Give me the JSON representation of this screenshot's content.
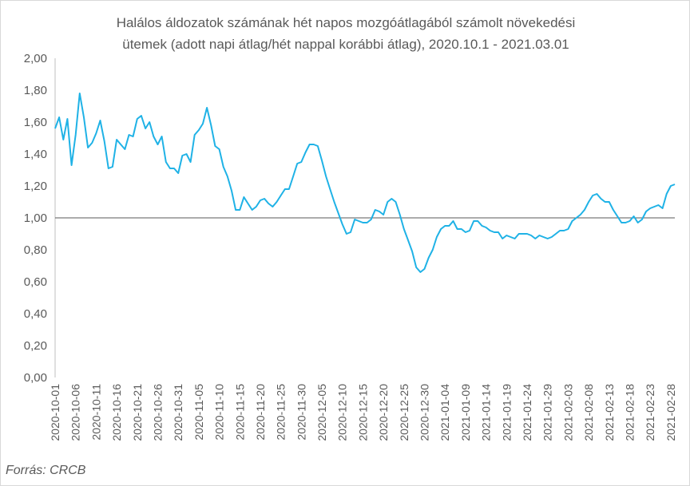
{
  "chart_data": {
    "type": "line",
    "title_lines": [
      "Halálos áldozatok számának hét napos mozgóátlagából számolt növekedési",
      "ütemek (adott napi átlag/hét nappal korábbi átlag), 2020.10.1 - 2021.03.01"
    ],
    "xlabel": "",
    "ylabel": "",
    "ylim": [
      0,
      2
    ],
    "y_ticks": [
      "0,00",
      "0,20",
      "0,40",
      "0,60",
      "0,80",
      "1,00",
      "1,20",
      "1,40",
      "1,60",
      "1,80",
      "2,00"
    ],
    "reference_line": 1.0,
    "grid": false,
    "x_tick_labels": [
      "2020-10-01",
      "2020-10-06",
      "2020-10-11",
      "2020-10-16",
      "2020-10-21",
      "2020-10-26",
      "2020-10-31",
      "2020-11-05",
      "2020-11-10",
      "2020-11-15",
      "2020-11-20",
      "2020-11-25",
      "2020-11-30",
      "2020-12-05",
      "2020-12-10",
      "2020-12-15",
      "2020-12-20",
      "2020-12-25",
      "2020-12-30",
      "2021-01-04",
      "2021-01-09",
      "2021-01-14",
      "2021-01-19",
      "2021-01-24",
      "2021-01-29",
      "2021-02-03",
      "2021-02-08",
      "2021-02-13",
      "2021-02-18",
      "2021-02-23",
      "2021-02-28"
    ],
    "x_start": "2020-10-01",
    "x_end": "2021-03-01",
    "line_color": "#1fb2e6",
    "series": [
      {
        "values": [
          1.56,
          1.63,
          1.49,
          1.62,
          1.33,
          1.52,
          1.78,
          1.63,
          1.44,
          1.47,
          1.53,
          1.61,
          1.48,
          1.31,
          1.32,
          1.49,
          1.46,
          1.43,
          1.52,
          1.51,
          1.62,
          1.64,
          1.56,
          1.6,
          1.51,
          1.46,
          1.51,
          1.35,
          1.31,
          1.31,
          1.28,
          1.39,
          1.4,
          1.35,
          1.52,
          1.55,
          1.59,
          1.69,
          1.58,
          1.45,
          1.43,
          1.32,
          1.26,
          1.17,
          1.05,
          1.05,
          1.13,
          1.09,
          1.05,
          1.07,
          1.11,
          1.12,
          1.09,
          1.07,
          1.1,
          1.14,
          1.18,
          1.18,
          1.26,
          1.34,
          1.35,
          1.41,
          1.46,
          1.46,
          1.45,
          1.36,
          1.26,
          1.18,
          1.1,
          1.03,
          0.96,
          0.9,
          0.91,
          0.99,
          0.98,
          0.97,
          0.97,
          0.99,
          1.05,
          1.04,
          1.02,
          1.1,
          1.12,
          1.1,
          1.02,
          0.93,
          0.86,
          0.79,
          0.69,
          0.66,
          0.68,
          0.75,
          0.8,
          0.88,
          0.93,
          0.95,
          0.95,
          0.98,
          0.93,
          0.93,
          0.91,
          0.92,
          0.98,
          0.98,
          0.95,
          0.94,
          0.92,
          0.91,
          0.91,
          0.87,
          0.89,
          0.88,
          0.87,
          0.9,
          0.9,
          0.9,
          0.89,
          0.87,
          0.89,
          0.88,
          0.87,
          0.88,
          0.9,
          0.92,
          0.92,
          0.93,
          0.98,
          1.0,
          1.02,
          1.05,
          1.1,
          1.14,
          1.15,
          1.12,
          1.1,
          1.1,
          1.05,
          1.01,
          0.97,
          0.97,
          0.98,
          1.01,
          0.97,
          0.99,
          1.04,
          1.06,
          1.07,
          1.08,
          1.06,
          1.15,
          1.2,
          1.21
        ]
      }
    ]
  },
  "source_label": "Forrás: CRCB"
}
